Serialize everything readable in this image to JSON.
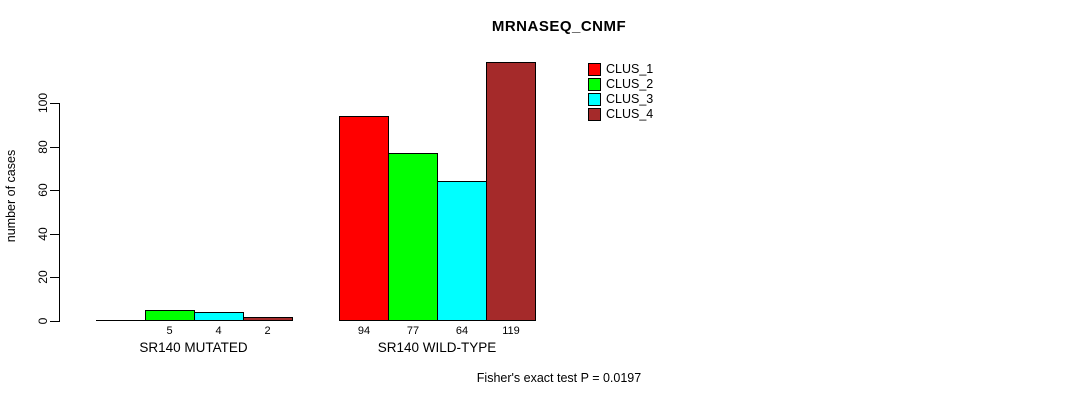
{
  "title": "MRNASEQ_CNMF",
  "y_axis": {
    "label": "number of cases"
  },
  "footer": "Fisher's exact test P = 0.0197",
  "legend": {
    "position": "top-right",
    "items": [
      {
        "label": "CLUS_1",
        "color": "#ff0000"
      },
      {
        "label": "CLUS_2",
        "color": "#00ff00"
      },
      {
        "label": "CLUS_3",
        "color": "#00ffff"
      },
      {
        "label": "CLUS_4",
        "color": "#a52a2a"
      }
    ]
  },
  "chart_data": {
    "type": "bar",
    "title": "MRNASEQ_CNMF",
    "xlabel": "",
    "ylabel": "number of cases",
    "categories": [
      "SR140 MUTATED",
      "SR140 WILD-TYPE"
    ],
    "series": [
      {
        "name": "CLUS_1",
        "color": "#ff0000",
        "values": [
          0,
          94
        ]
      },
      {
        "name": "CLUS_2",
        "color": "#00ff00",
        "values": [
          5,
          77
        ]
      },
      {
        "name": "CLUS_3",
        "color": "#00ffff",
        "values": [
          4,
          64
        ]
      },
      {
        "name": "CLUS_4",
        "color": "#a52a2a",
        "values": [
          2,
          119
        ]
      }
    ],
    "bar_value_labels": [
      [
        "",
        "5",
        "4",
        "2"
      ],
      [
        "94",
        "77",
        "64",
        "119"
      ]
    ],
    "yticks": [
      0,
      20,
      40,
      60,
      80,
      100
    ],
    "ylim": [
      0,
      100
    ],
    "grid": false,
    "legend_position": "top-right",
    "annotation": "Fisher's exact test P = 0.0197"
  }
}
